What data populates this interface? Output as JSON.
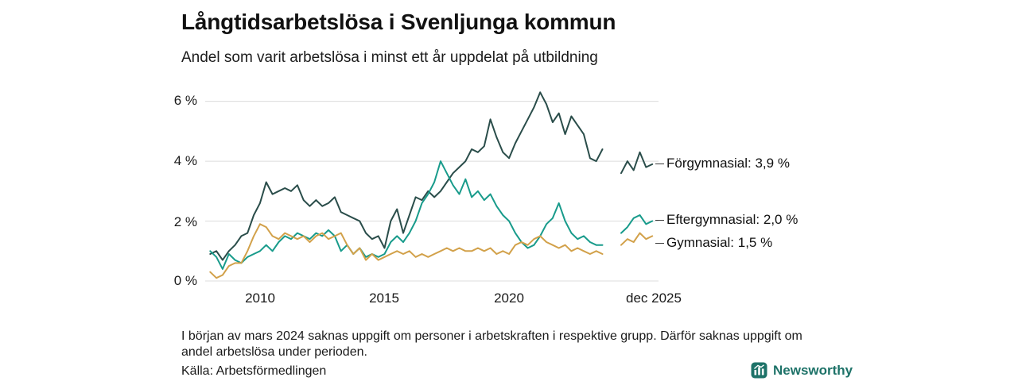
{
  "header": {
    "title": "Långtidsarbetslösa i Svenljunga kommun",
    "subtitle": "Andel som varit arbetslösa i minst ett år uppdelat på utbildning"
  },
  "chart_data": {
    "type": "line",
    "title": "Långtidsarbetslösa i Svenljunga kommun",
    "subtitle": "Andel som varit arbetslösa i minst ett år uppdelat på utbildning",
    "x_start": 2008.0,
    "x_step": 0.25,
    "xlim": [
      2007.8,
      2026.0
    ],
    "ylim": [
      0,
      6.6
    ],
    "gridlines": [
      0,
      2,
      4,
      6
    ],
    "grid": "horizontal-only",
    "legend_position": "right-end-labels",
    "y_axis_ticks": [
      "6 %",
      "4 %",
      "2 %",
      "0 %"
    ],
    "x_axis_ticks": [
      "2010",
      "2015",
      "2020",
      "dec 2025"
    ],
    "gap_note": "Values for early 2024 are missing (gap in all series)",
    "series": [
      {
        "name": "Förgymnasial",
        "end_label": "Förgymnasial: 3,9 %",
        "end_value": "3,9 %",
        "color": "#2a4d4a",
        "values": [
          0.9,
          1.0,
          0.7,
          1.0,
          1.2,
          1.5,
          1.6,
          2.2,
          2.6,
          3.3,
          2.9,
          3.0,
          3.1,
          3.0,
          3.2,
          2.7,
          2.5,
          2.7,
          2.5,
          2.6,
          2.8,
          2.3,
          2.2,
          2.1,
          2.0,
          1.6,
          1.4,
          1.5,
          1.1,
          2.0,
          2.4,
          1.6,
          2.2,
          2.8,
          2.7,
          3.0,
          2.8,
          3.0,
          3.3,
          3.6,
          3.8,
          4.0,
          4.4,
          4.3,
          4.5,
          5.4,
          4.8,
          4.3,
          4.1,
          4.6,
          5.0,
          5.4,
          5.8,
          6.3,
          5.9,
          5.3,
          5.6,
          4.9,
          5.5,
          5.2,
          4.9,
          4.1,
          4.0,
          4.4,
          null,
          null,
          3.6,
          4.0,
          3.7,
          4.3,
          3.8,
          3.9
        ]
      },
      {
        "name": "Eftergymnasial",
        "end_label": "Eftergymnasial: 2,0 %",
        "end_value": "2,0 %",
        "color": "#189b8b",
        "values": [
          1.0,
          0.8,
          0.4,
          0.9,
          0.7,
          0.6,
          0.8,
          0.9,
          1.0,
          1.2,
          1.0,
          1.3,
          1.5,
          1.4,
          1.6,
          1.5,
          1.4,
          1.6,
          1.5,
          1.7,
          1.5,
          1.0,
          1.2,
          0.9,
          1.1,
          0.8,
          0.9,
          0.8,
          0.9,
          1.3,
          1.5,
          1.3,
          1.6,
          2.0,
          2.6,
          2.9,
          3.3,
          4.0,
          3.6,
          3.2,
          2.9,
          3.4,
          2.8,
          3.0,
          2.7,
          2.9,
          2.5,
          2.2,
          2.0,
          1.6,
          1.3,
          1.1,
          1.2,
          1.5,
          1.9,
          2.1,
          2.6,
          2.0,
          1.6,
          1.4,
          1.5,
          1.3,
          1.2,
          1.2,
          null,
          null,
          1.6,
          1.8,
          2.1,
          2.2,
          1.9,
          2.0
        ]
      },
      {
        "name": "Gymnasial",
        "end_label": "Gymnasial: 1,5 %",
        "end_value": "1,5 %",
        "color": "#d2a14a",
        "values": [
          0.3,
          0.1,
          0.2,
          0.5,
          0.6,
          0.6,
          1.0,
          1.5,
          1.9,
          1.8,
          1.5,
          1.4,
          1.6,
          1.5,
          1.4,
          1.5,
          1.3,
          1.5,
          1.6,
          1.4,
          1.5,
          1.6,
          1.2,
          0.9,
          1.1,
          0.7,
          0.9,
          0.7,
          0.8,
          0.9,
          1.0,
          0.9,
          1.0,
          0.8,
          0.9,
          0.8,
          0.9,
          1.0,
          1.1,
          1.0,
          1.1,
          1.0,
          1.0,
          1.1,
          1.0,
          1.1,
          0.9,
          1.0,
          0.9,
          1.2,
          1.3,
          1.2,
          1.4,
          1.5,
          1.3,
          1.2,
          1.1,
          1.2,
          1.0,
          1.1,
          1.0,
          0.9,
          1.0,
          0.9,
          null,
          null,
          1.2,
          1.4,
          1.3,
          1.6,
          1.4,
          1.5
        ]
      }
    ]
  },
  "footer": {
    "footnote": "I början av mars 2024 saknas uppgift om personer i arbetskraften i respektive grupp. Därför saknas uppgift om andel arbetslösa under perioden.",
    "source": "Källa: Arbetsförmedlingen",
    "logo_text": "Newsworthy"
  },
  "colors": {
    "forgymnasial": "#2a4d4a",
    "eftergymnasial": "#189b8b",
    "gymnasial": "#d2a14a",
    "gridline": "#dcdcdc",
    "logo_teal": "#1d7268"
  }
}
